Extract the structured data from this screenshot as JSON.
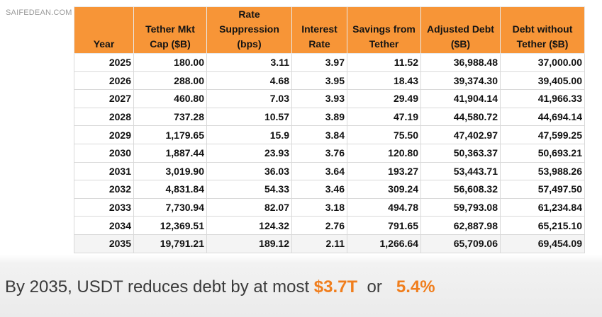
{
  "watermark": "SAIFEDEAN.COM",
  "table": {
    "headers": [
      "Year",
      "Tether Mkt Cap ($B)",
      "Rate Suppression (bps)",
      "Interest Rate",
      "Savings from Tether",
      "Adjusted Debt ($B)",
      "Debt without Tether ($B)"
    ],
    "rows": [
      [
        "2025",
        "180.00",
        "3.11",
        "3.97",
        "11.52",
        "36,988.48",
        "37,000.00"
      ],
      [
        "2026",
        "288.00",
        "4.68",
        "3.95",
        "18.43",
        "39,374.30",
        "39,405.00"
      ],
      [
        "2027",
        "460.80",
        "7.03",
        "3.93",
        "29.49",
        "41,904.14",
        "41,966.33"
      ],
      [
        "2028",
        "737.28",
        "10.57",
        "3.89",
        "47.19",
        "44,580.72",
        "44,694.14"
      ],
      [
        "2029",
        "1,179.65",
        "15.9",
        "3.84",
        "75.50",
        "47,402.97",
        "47,599.25"
      ],
      [
        "2030",
        "1,887.44",
        "23.93",
        "3.76",
        "120.80",
        "50,363.37",
        "50,693.21"
      ],
      [
        "2031",
        "3,019.90",
        "36.03",
        "3.64",
        "193.27",
        "53,443.71",
        "53,988.26"
      ],
      [
        "2032",
        "4,831.84",
        "54.33",
        "3.46",
        "309.24",
        "56,608.32",
        "57,497.50"
      ],
      [
        "2033",
        "7,730.94",
        "82.07",
        "3.18",
        "494.78",
        "59,793.08",
        "61,234.84"
      ],
      [
        "2034",
        "12,369.51",
        "124.32",
        "2.76",
        "791.65",
        "62,887.98",
        "65,215.10"
      ],
      [
        "2035",
        "19,791.21",
        "189.12",
        "2.11",
        "1,266.64",
        "65,709.06",
        "69,454.09"
      ]
    ]
  },
  "footer": {
    "text": "By 2035, USDT reduces debt by at most",
    "amount": "$3.7T",
    "connector": "or",
    "percent": "5.4%"
  },
  "colors": {
    "header_bg": "#f79537",
    "highlight": "#f07e1d"
  }
}
